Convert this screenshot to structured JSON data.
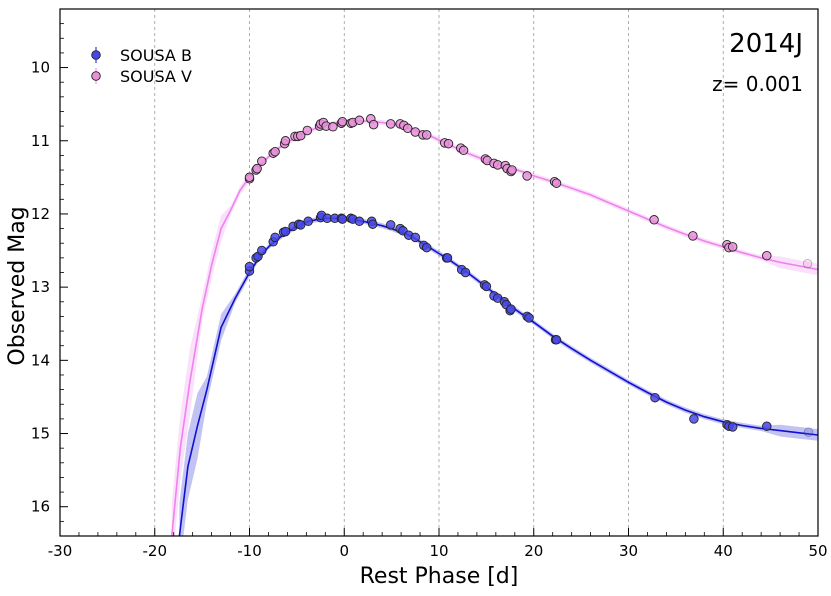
{
  "chart_data": {
    "type": "scatter",
    "xlabel": "Rest Phase [d]",
    "ylabel": "Observed Mag",
    "xlim": [
      -30,
      50
    ],
    "ylim": [
      16.4,
      9.2
    ],
    "y_inverted": true,
    "x_ticks": [
      -30,
      -20,
      -10,
      0,
      10,
      20,
      30,
      40,
      50
    ],
    "x_tick_labels": [
      "-30",
      "-20",
      "-10",
      "0",
      "10",
      "20",
      "30",
      "40",
      "50"
    ],
    "y_ticks": [
      10,
      11,
      12,
      13,
      14,
      15,
      16
    ],
    "y_tick_labels": [
      "10",
      "11",
      "12",
      "13",
      "14",
      "15",
      "16"
    ],
    "vertical_gridlines": [
      -20,
      -10,
      0,
      10,
      20,
      30,
      40
    ],
    "annotations": {
      "name": "2014J",
      "redshift": "z= 0.001"
    },
    "legend_position": "top-left",
    "series": [
      {
        "name": "SOUSA B",
        "color": "#1010d0",
        "marker_fill": "#4848e8",
        "points": [
          [
            -10.0,
            12.78
          ],
          [
            -10.0,
            12.72
          ],
          [
            -9.3,
            12.6
          ],
          [
            -9.1,
            12.58
          ],
          [
            -8.7,
            12.5
          ],
          [
            -7.5,
            12.38
          ],
          [
            -7.3,
            12.32
          ],
          [
            -6.4,
            12.25
          ],
          [
            -6.2,
            12.24
          ],
          [
            -5.4,
            12.17
          ],
          [
            -4.8,
            12.14
          ],
          [
            -4.6,
            12.15
          ],
          [
            -3.8,
            12.1
          ],
          [
            -2.5,
            12.05
          ],
          [
            -2.4,
            12.02
          ],
          [
            -1.8,
            12.06
          ],
          [
            -1.0,
            12.06
          ],
          [
            -0.3,
            12.06
          ],
          [
            -0.2,
            12.07
          ],
          [
            0.7,
            12.06
          ],
          [
            0.9,
            12.07
          ],
          [
            1.6,
            12.1
          ],
          [
            2.9,
            12.1
          ],
          [
            3.0,
            12.14
          ],
          [
            4.9,
            12.15
          ],
          [
            5.9,
            12.2
          ],
          [
            6.2,
            12.23
          ],
          [
            6.8,
            12.29
          ],
          [
            7.5,
            12.32
          ],
          [
            8.4,
            12.43
          ],
          [
            8.7,
            12.46
          ],
          [
            10.8,
            12.6
          ],
          [
            10.9,
            12.6
          ],
          [
            12.4,
            12.76
          ],
          [
            12.8,
            12.8
          ],
          [
            14.8,
            12.97
          ],
          [
            15.0,
            12.99
          ],
          [
            15.8,
            13.12
          ],
          [
            16.2,
            13.15
          ],
          [
            16.9,
            13.2
          ],
          [
            17.1,
            13.24
          ],
          [
            17.5,
            13.32
          ],
          [
            17.6,
            13.3
          ],
          [
            19.3,
            13.4
          ],
          [
            19.5,
            13.42
          ],
          [
            22.3,
            13.72
          ],
          [
            22.4,
            13.72
          ],
          [
            32.8,
            14.51
          ],
          [
            36.9,
            14.8
          ],
          [
            40.4,
            14.88
          ],
          [
            40.6,
            14.9
          ],
          [
            41.0,
            14.91
          ],
          [
            44.6,
            14.9
          ],
          [
            49.0,
            14.98
          ]
        ],
        "model": [
          [
            -17.4,
            16.4
          ],
          [
            -16.5,
            15.45
          ],
          [
            -15.5,
            14.9
          ],
          [
            -14.5,
            14.4
          ],
          [
            -13.0,
            13.55
          ],
          [
            -11.5,
            13.15
          ],
          [
            -10.0,
            12.8
          ],
          [
            -9.0,
            12.6
          ],
          [
            -8.0,
            12.45
          ],
          [
            -7.0,
            12.34
          ],
          [
            -6.0,
            12.25
          ],
          [
            -5.0,
            12.17
          ],
          [
            -4.0,
            12.11
          ],
          [
            -3.0,
            12.08
          ],
          [
            -2.0,
            12.06
          ],
          [
            -1.0,
            12.06
          ],
          [
            0.0,
            12.07
          ],
          [
            1.0,
            12.08
          ],
          [
            2.0,
            12.1
          ],
          [
            3.0,
            12.13
          ],
          [
            4.0,
            12.16
          ],
          [
            5.0,
            12.2
          ],
          [
            6.0,
            12.25
          ],
          [
            7.0,
            12.3
          ],
          [
            8.0,
            12.38
          ],
          [
            9.0,
            12.46
          ],
          [
            10.0,
            12.54
          ],
          [
            11.0,
            12.62
          ],
          [
            12.0,
            12.71
          ],
          [
            13.0,
            12.8
          ],
          [
            14.0,
            12.9
          ],
          [
            15.0,
            13.0
          ],
          [
            16.0,
            13.1
          ],
          [
            17.0,
            13.2
          ],
          [
            18.0,
            13.3
          ],
          [
            19.0,
            13.39
          ],
          [
            20.0,
            13.48
          ],
          [
            22.0,
            13.67
          ],
          [
            24.0,
            13.84
          ],
          [
            26.0,
            14.0
          ],
          [
            28.0,
            14.15
          ],
          [
            30.0,
            14.3
          ],
          [
            32.0,
            14.44
          ],
          [
            34.0,
            14.57
          ],
          [
            36.0,
            14.68
          ],
          [
            38.0,
            14.77
          ],
          [
            40.0,
            14.84
          ],
          [
            42.0,
            14.89
          ],
          [
            44.0,
            14.93
          ],
          [
            46.0,
            14.96
          ],
          [
            48.0,
            14.99
          ],
          [
            50.0,
            15.02
          ]
        ]
      },
      {
        "name": "SOUSA V",
        "color": "#ee82ee",
        "marker_fill": "#e890d8",
        "points": [
          [
            -10.0,
            11.52
          ],
          [
            -10.0,
            11.5
          ],
          [
            -9.3,
            11.4
          ],
          [
            -9.2,
            11.38
          ],
          [
            -8.7,
            11.28
          ],
          [
            -7.5,
            11.17
          ],
          [
            -7.3,
            11.15
          ],
          [
            -6.3,
            11.04
          ],
          [
            -6.2,
            11.0
          ],
          [
            -5.2,
            10.94
          ],
          [
            -4.9,
            10.94
          ],
          [
            -4.6,
            10.93
          ],
          [
            -3.9,
            10.86
          ],
          [
            -2.6,
            10.8
          ],
          [
            -2.5,
            10.77
          ],
          [
            -2.2,
            10.75
          ],
          [
            -1.9,
            10.8
          ],
          [
            -1.2,
            10.81
          ],
          [
            -0.3,
            10.76
          ],
          [
            -0.2,
            10.74
          ],
          [
            0.7,
            10.76
          ],
          [
            0.9,
            10.75
          ],
          [
            1.6,
            10.72
          ],
          [
            2.8,
            10.7
          ],
          [
            3.1,
            10.78
          ],
          [
            4.9,
            10.77
          ],
          [
            5.9,
            10.77
          ],
          [
            6.3,
            10.79
          ],
          [
            6.7,
            10.83
          ],
          [
            7.5,
            10.88
          ],
          [
            8.3,
            10.92
          ],
          [
            8.7,
            10.92
          ],
          [
            10.6,
            11.03
          ],
          [
            11.0,
            11.04
          ],
          [
            12.3,
            11.1
          ],
          [
            12.6,
            11.13
          ],
          [
            14.9,
            11.25
          ],
          [
            15.1,
            11.27
          ],
          [
            15.8,
            11.31
          ],
          [
            16.2,
            11.33
          ],
          [
            17.0,
            11.34
          ],
          [
            17.2,
            11.38
          ],
          [
            17.6,
            11.42
          ],
          [
            17.7,
            11.4
          ],
          [
            19.3,
            11.48
          ],
          [
            22.2,
            11.56
          ],
          [
            22.4,
            11.58
          ],
          [
            32.7,
            12.08
          ],
          [
            36.8,
            12.3
          ],
          [
            40.4,
            12.42
          ],
          [
            40.6,
            12.46
          ],
          [
            41.0,
            12.45
          ],
          [
            44.6,
            12.57
          ],
          [
            48.9,
            12.68
          ]
        ],
        "model": [
          [
            -18.2,
            16.4
          ],
          [
            -17.3,
            15.2
          ],
          [
            -16.3,
            14.3
          ],
          [
            -15.0,
            13.3
          ],
          [
            -14.0,
            12.7
          ],
          [
            -13.0,
            12.2
          ],
          [
            -12.0,
            11.95
          ],
          [
            -11.0,
            11.68
          ],
          [
            -10.0,
            11.5
          ],
          [
            -9.0,
            11.35
          ],
          [
            -8.0,
            11.22
          ],
          [
            -7.0,
            11.11
          ],
          [
            -6.0,
            11.02
          ],
          [
            -5.0,
            10.95
          ],
          [
            -4.0,
            10.88
          ],
          [
            -3.0,
            10.83
          ],
          [
            -2.0,
            10.79
          ],
          [
            -1.0,
            10.76
          ],
          [
            0.0,
            10.74
          ],
          [
            1.0,
            10.73
          ],
          [
            2.0,
            10.73
          ],
          [
            3.0,
            10.74
          ],
          [
            4.0,
            10.75
          ],
          [
            5.0,
            10.77
          ],
          [
            6.0,
            10.8
          ],
          [
            7.0,
            10.84
          ],
          [
            8.0,
            10.88
          ],
          [
            9.0,
            10.93
          ],
          [
            10.0,
            10.99
          ],
          [
            11.0,
            11.05
          ],
          [
            12.0,
            11.11
          ],
          [
            13.0,
            11.17
          ],
          [
            14.0,
            11.22
          ],
          [
            15.0,
            11.27
          ],
          [
            16.0,
            11.31
          ],
          [
            17.0,
            11.35
          ],
          [
            18.0,
            11.39
          ],
          [
            19.0,
            11.43
          ],
          [
            20.0,
            11.48
          ],
          [
            22.0,
            11.56
          ],
          [
            24.0,
            11.65
          ],
          [
            26.0,
            11.74
          ],
          [
            28.0,
            11.85
          ],
          [
            30.0,
            11.96
          ],
          [
            32.0,
            12.07
          ],
          [
            34.0,
            12.18
          ],
          [
            36.0,
            12.28
          ],
          [
            38.0,
            12.37
          ],
          [
            40.0,
            12.45
          ],
          [
            42.0,
            12.53
          ],
          [
            44.0,
            12.6
          ],
          [
            46.0,
            12.66
          ],
          [
            48.0,
            12.71
          ],
          [
            50.0,
            12.76
          ]
        ]
      }
    ]
  }
}
